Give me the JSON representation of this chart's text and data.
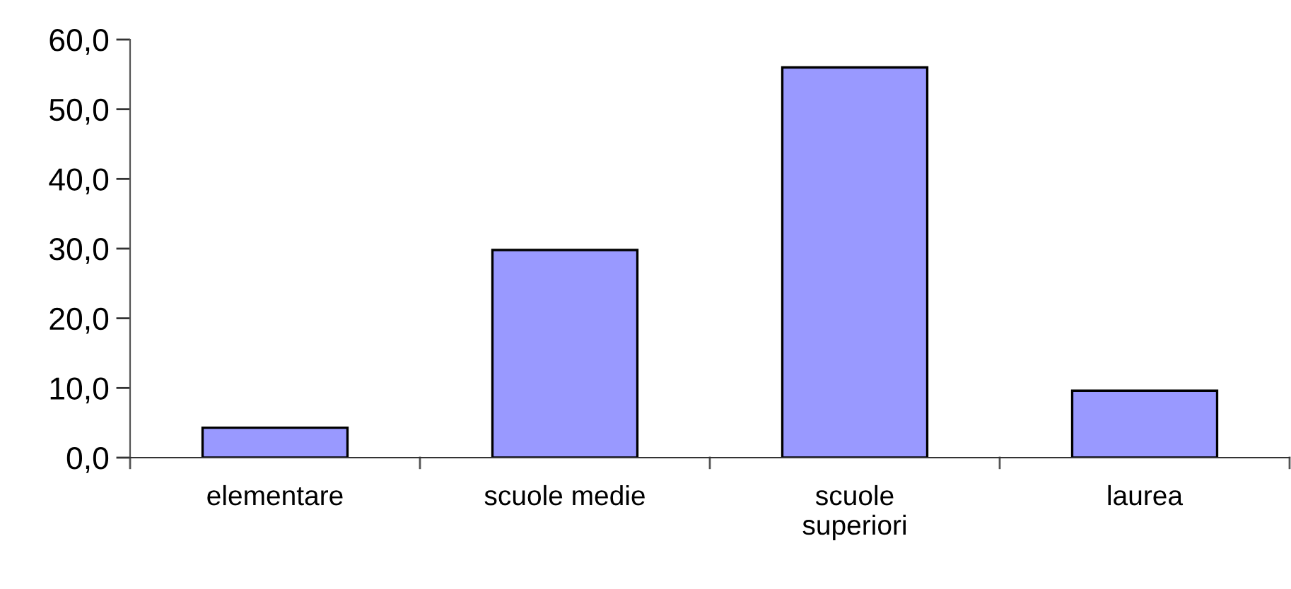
{
  "chart_data": {
    "type": "bar",
    "categories": [
      "elementare",
      "scuole medie",
      "scuole superiori",
      "laurea"
    ],
    "values": [
      4.3,
      29.8,
      56.0,
      9.6
    ],
    "color": "#9999ff",
    "ylim": [
      0,
      60
    ],
    "yticks": [
      {
        "value": 0,
        "label": "0,0"
      },
      {
        "value": 10,
        "label": "10,0"
      },
      {
        "value": 20,
        "label": "20,0"
      },
      {
        "value": 30,
        "label": "30,0"
      },
      {
        "value": 40,
        "label": "40,0"
      },
      {
        "value": 50,
        "label": "50,0"
      },
      {
        "value": 60,
        "label": "60,0"
      }
    ],
    "grid": false,
    "legend": false
  }
}
